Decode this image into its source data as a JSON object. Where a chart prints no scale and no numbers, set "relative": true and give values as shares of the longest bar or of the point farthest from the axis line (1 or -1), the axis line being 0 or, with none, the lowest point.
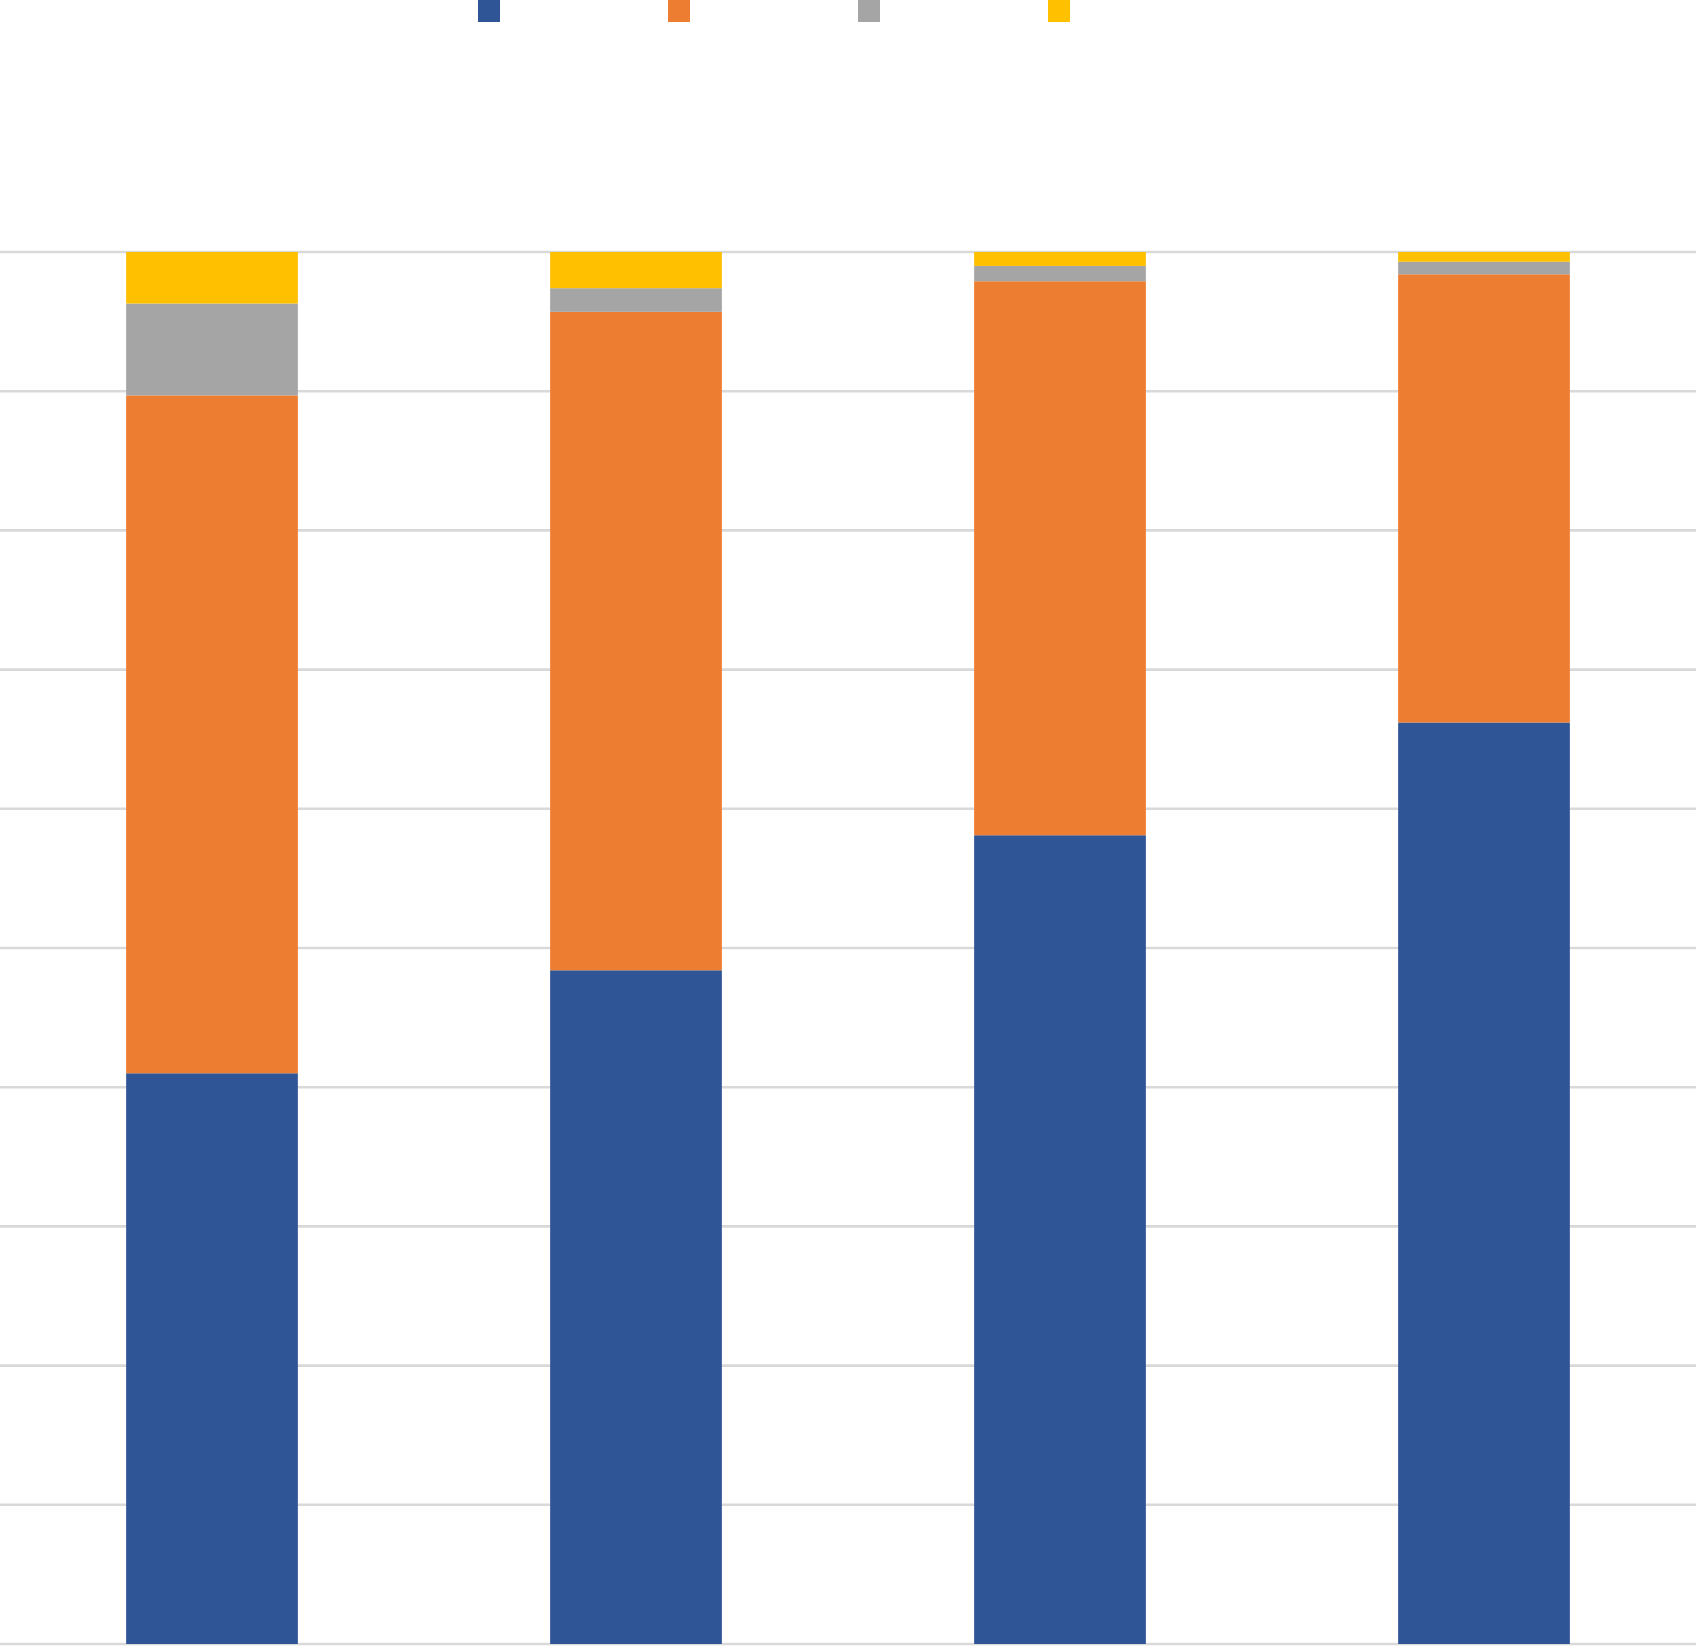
{
  "chart_data": {
    "type": "bar",
    "stacked": true,
    "relative": true,
    "categories": [
      null,
      null,
      null,
      null
    ],
    "series": [
      {
        "color": "#2f5597",
        "values": [
          0.41,
          0.484,
          0.581,
          0.662
        ]
      },
      {
        "color": "#ed7d31",
        "values": [
          0.487,
          0.473,
          0.398,
          0.322
        ]
      },
      {
        "color": "#a5a5a5",
        "values": [
          0.066,
          0.017,
          0.011,
          0.009
        ]
      },
      {
        "color": "#ffc000",
        "values": [
          0.037,
          0.026,
          0.01,
          0.007
        ]
      }
    ],
    "grid": true
  }
}
